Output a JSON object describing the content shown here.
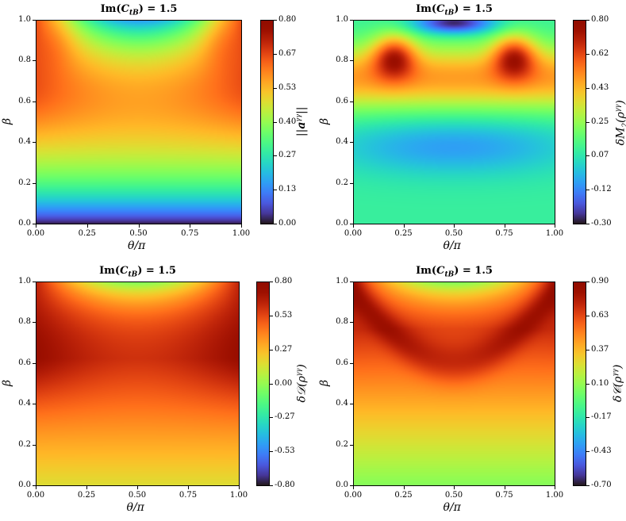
{
  "chart_data": [
    {
      "type": "heatmap",
      "title": "Im(C_tB) = 1.5",
      "xlabel": "θ/π",
      "ylabel": "β",
      "colorbar_label": "||a^γγ||",
      "xlim": [
        0,
        1
      ],
      "ylim": [
        0,
        1
      ],
      "x_ticks": [
        "0.00",
        "0.25",
        "0.50",
        "0.75",
        "1.00"
      ],
      "y_ticks": [
        "0.0",
        "0.2",
        "0.4",
        "0.6",
        "0.8",
        "1.0"
      ],
      "colorbar_range": [
        0,
        0.8
      ],
      "colorbar_ticks": [
        "0.00",
        "0.13",
        "0.27",
        "0.40",
        "0.53",
        "0.67",
        "0.80"
      ],
      "colormap": "turbo",
      "pattern": "vector_norm"
    },
    {
      "type": "heatmap",
      "title": "Im(C_tB) = 1.5",
      "xlabel": "θ/π",
      "ylabel": "β",
      "colorbar_label": "δM_2(ρ^γγ)",
      "xlim": [
        0,
        1
      ],
      "ylim": [
        0,
        1
      ],
      "x_ticks": [
        "0.00",
        "0.25",
        "0.50",
        "0.75",
        "1.00"
      ],
      "y_ticks": [
        "0.0",
        "0.2",
        "0.4",
        "0.6",
        "0.8",
        "1.0"
      ],
      "colorbar_range": [
        -0.3,
        0.8
      ],
      "colorbar_ticks": [
        "-0.30",
        "-0.12",
        "0.07",
        "0.25",
        "0.43",
        "0.62",
        "0.80"
      ],
      "colormap": "turbo",
      "pattern": "magic"
    },
    {
      "type": "heatmap",
      "title": "Im(C_tB) = 1.5",
      "xlabel": "θ/π",
      "ylabel": "β",
      "colorbar_label": "δD(ρ^γγ)",
      "xlim": [
        0,
        1
      ],
      "ylim": [
        0,
        1
      ],
      "x_ticks": [
        "0.00",
        "0.25",
        "0.50",
        "0.75",
        "1.00"
      ],
      "y_ticks": [
        "0.0",
        "0.2",
        "0.4",
        "0.6",
        "0.8",
        "1.0"
      ],
      "colorbar_range": [
        -0.8,
        0.8
      ],
      "colorbar_ticks": [
        "-0.80",
        "-0.53",
        "-0.27",
        "0.00",
        "0.27",
        "0.53",
        "0.80"
      ],
      "colormap": "turbo",
      "pattern": "discord"
    },
    {
      "type": "heatmap",
      "title": "Im(C_tB) = 1.5",
      "xlabel": "θ/π",
      "ylabel": "β",
      "colorbar_label": "δC(ρ^γγ)",
      "xlim": [
        0,
        1
      ],
      "ylim": [
        0,
        1
      ],
      "x_ticks": [
        "0.00",
        "0.25",
        "0.50",
        "0.75",
        "1.00"
      ],
      "y_ticks": [
        "0.0",
        "0.2",
        "0.4",
        "0.6",
        "0.8",
        "1.0"
      ],
      "colorbar_range": [
        -0.7,
        0.9
      ],
      "colorbar_ticks": [
        "-0.70",
        "-0.43",
        "-0.17",
        "0.10",
        "0.37",
        "0.63",
        "0.90"
      ],
      "colormap": "turbo",
      "pattern": "concurrence"
    }
  ]
}
